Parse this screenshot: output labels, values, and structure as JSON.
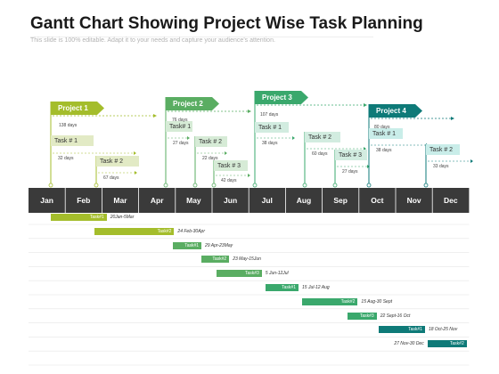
{
  "title": "Gantt Chart Showing Project Wise Task Planning",
  "subtitle": "This slide is 100% editable. Adapt it to your needs and capture your audience's attention.",
  "months": [
    "Jan",
    "Feb",
    "Mar",
    "Apr",
    "May",
    "Jun",
    "Jul",
    "Aug",
    "Sep",
    "Oct",
    "Nov",
    "Dec"
  ],
  "colors": {
    "p1": "#a4bd2b",
    "p1light": "#e2eac5",
    "p2": "#5aad62",
    "p2light": "#d6ebd6",
    "p3": "#3aa86c",
    "p3light": "#d2ece0",
    "p4": "#0e7a78",
    "p4light": "#c9ede9",
    "header": "#3a3a3a"
  },
  "projects": [
    {
      "label": "Project 1",
      "color": "p1",
      "duration": "138 days",
      "tasks": [
        {
          "label": "Task # 1",
          "duration": "32 days",
          "light": "p1light"
        },
        {
          "label": "Task # 2",
          "duration": "67 days",
          "light": "p1light"
        }
      ]
    },
    {
      "label": "Project 2",
      "color": "p2",
      "duration": "76 days",
      "tasks": [
        {
          "label": "Task# 1",
          "duration": "27 days",
          "light": "p2light"
        },
        {
          "label": "Task # 2",
          "duration": "22 days",
          "light": "p2light"
        },
        {
          "label": "Task # 3",
          "duration": "42 days",
          "light": "p2light"
        }
      ]
    },
    {
      "label": "Project 3",
      "color": "p3",
      "duration": "107 days",
      "tasks": [
        {
          "label": "Task # 1",
          "duration": "38 days",
          "light": "p3light"
        },
        {
          "label": "Task # 2",
          "duration": "60 days",
          "light": "p3light"
        },
        {
          "label": "Task # 3",
          "duration": "27 days",
          "light": "p3light"
        }
      ]
    },
    {
      "label": "Project 4",
      "color": "p4",
      "duration": "80 days",
      "tasks": [
        {
          "label": "Task # 1",
          "duration": "38 days",
          "light": "p4light"
        },
        {
          "label": "Task # 2",
          "duration": "33 days",
          "light": "p4light"
        }
      ]
    }
  ],
  "schedule": [
    {
      "task": "Task#1",
      "dates": "20Jan-5Mar",
      "start": "2024-01-20",
      "end": "2024-03-05",
      "color": "p1",
      "label_side": "right"
    },
    {
      "task": "Task#2",
      "dates": "24 Feb-30Apr",
      "start": "2024-02-24",
      "end": "2024-04-30",
      "color": "p1",
      "label_side": "right"
    },
    {
      "task": "Task#1",
      "dates": "29 Apr-23May",
      "start": "2024-04-29",
      "end": "2024-05-23",
      "color": "p2",
      "label_side": "right"
    },
    {
      "task": "Task#2",
      "dates": "23 May-15Jun",
      "start": "2024-05-23",
      "end": "2024-06-15",
      "color": "p2",
      "label_side": "right"
    },
    {
      "task": "Task#3",
      "dates": "5 Jun-12Jul",
      "start": "2024-06-05",
      "end": "2024-07-12",
      "color": "p2",
      "label_side": "right"
    },
    {
      "task": "Task#1",
      "dates": "15 Jul-12 Aug",
      "start": "2024-07-15",
      "end": "2024-08-12",
      "color": "p3",
      "label_side": "right"
    },
    {
      "task": "Task#2",
      "dates": "15 Aug-30 Sept",
      "start": "2024-08-15",
      "end": "2024-09-30",
      "color": "p3",
      "label_side": "right"
    },
    {
      "task": "Task#3",
      "dates": "22 Sept-16 Oct",
      "start": "2024-09-22",
      "end": "2024-10-16",
      "color": "p3",
      "label_side": "right"
    },
    {
      "task": "Task#1",
      "dates": "18 Oct-25 Nov",
      "start": "2024-10-18",
      "end": "2024-11-25",
      "color": "p4",
      "label_side": "right"
    },
    {
      "task": "Task#2",
      "dates": "27 Nov-30 Dec",
      "start": "2024-11-27",
      "end": "2024-12-30",
      "color": "p4",
      "label_side": "left"
    }
  ]
}
